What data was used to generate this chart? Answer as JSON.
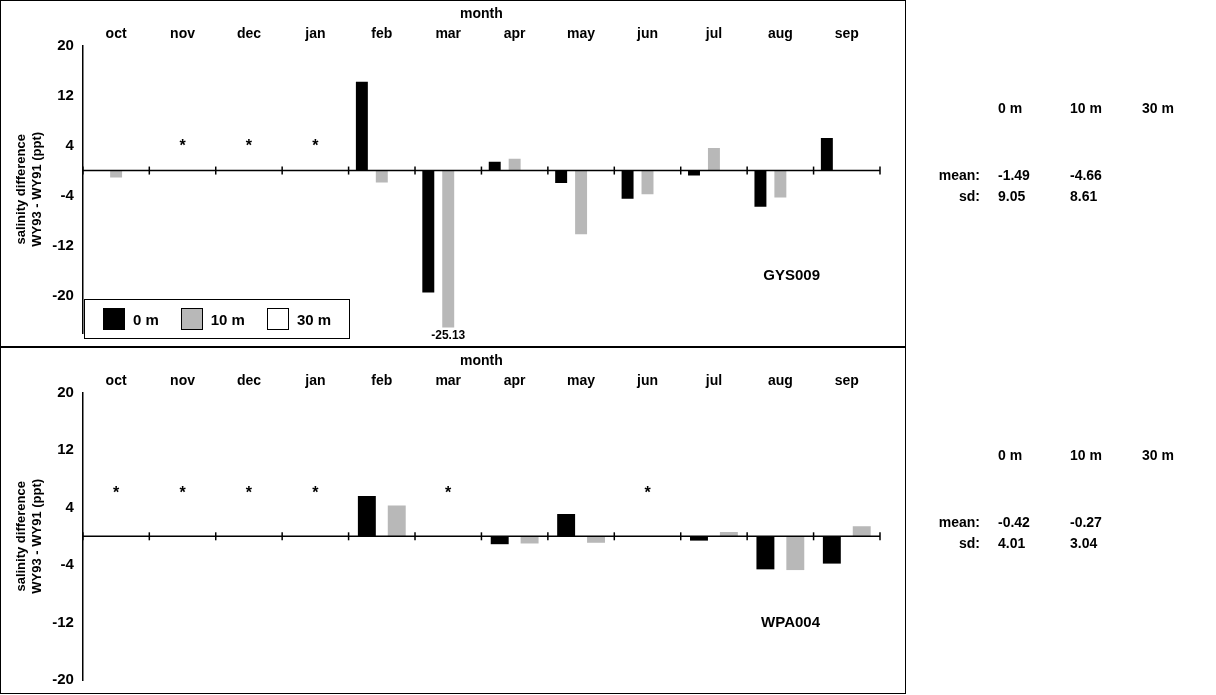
{
  "chart_data": [
    {
      "type": "bar",
      "xlabel": "month",
      "ylabel": "salinity difference\nWY93 - WY91 (ppt)",
      "categories": [
        "oct",
        "nov",
        "dec",
        "jan",
        "feb",
        "mar",
        "apr",
        "may",
        "jun",
        "jul",
        "aug",
        "sep"
      ],
      "series": [
        {
          "name": "0 m",
          "color": "#000000",
          "values": [
            0,
            null,
            null,
            null,
            14.2,
            -19.5,
            1.4,
            -2.0,
            -4.5,
            -0.8,
            -5.8,
            5.2
          ]
        },
        {
          "name": "10 m",
          "color": "#b8b8b8",
          "values": [
            -1.1,
            null,
            null,
            null,
            -1.9,
            -25.13,
            1.9,
            -10.2,
            -3.8,
            3.6,
            -4.3,
            null
          ],
          "value_labels": [
            null,
            null,
            null,
            null,
            null,
            "-25.13",
            null,
            null,
            null,
            null,
            null,
            null
          ]
        },
        {
          "name": "30 m",
          "color": "#ffffff",
          "values": [
            null,
            null,
            null,
            null,
            null,
            null,
            null,
            null,
            null,
            null,
            null,
            null
          ]
        }
      ],
      "ylim": [
        -26,
        20
      ],
      "yticks": [
        20,
        12,
        4,
        -4,
        -12,
        -20
      ],
      "grid": false,
      "legend": "bottom left",
      "ref_lines": [
        {
          "axis": "y",
          "value": 0,
          "color": "#000000"
        }
      ],
      "annotations": [
        "GYS009",
        "0 m",
        "10 m",
        "30 m",
        "mean:",
        "-1.49",
        "-4.66",
        "sd:",
        "9.05",
        "8.61",
        "*",
        "*",
        "*"
      ]
    },
    {
      "type": "bar",
      "xlabel": "month",
      "ylabel": "salinity difference\nWY93 - WY91 (ppt)",
      "categories": [
        "oct",
        "nov",
        "dec",
        "jan",
        "feb",
        "mar",
        "apr",
        "may",
        "jun",
        "jul",
        "aug",
        "sep"
      ],
      "series": [
        {
          "color": "#000000",
          "values": [
            null,
            null,
            null,
            null,
            5.6,
            null,
            -1.1,
            3.1,
            null,
            -0.6,
            -4.6,
            -3.8
          ]
        },
        {
          "color": "#b8b8b8",
          "values": [
            null,
            null,
            null,
            null,
            4.3,
            null,
            -1.0,
            -0.9,
            null,
            0.6,
            -4.7,
            1.4
          ]
        }
      ],
      "ylim": [
        -20,
        20
      ],
      "yticks": [
        20,
        12,
        4,
        -4,
        -12,
        -20
      ],
      "grid": false,
      "legend": false,
      "ref_lines": [
        {
          "axis": "y",
          "value": 0,
          "color": "#000000"
        }
      ],
      "annotations": [
        "WPA004",
        "0 m",
        "10 m",
        "30 m",
        "mean:",
        "-0.42",
        "-0.27",
        "sd:",
        "4.01",
        "3.04",
        "*",
        "*",
        "*",
        "*",
        "*",
        "*"
      ]
    }
  ]
}
